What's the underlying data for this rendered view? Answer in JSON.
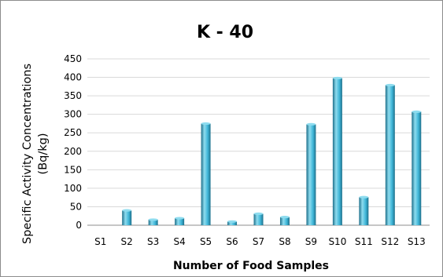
{
  "chart_data": {
    "type": "bar",
    "title": "K - 40",
    "xlabel": "Number of Food Samples",
    "ylabel_lines": [
      "Specific  Activity Concentrations",
      "(Bq/kg)"
    ],
    "categories": [
      "S1",
      "S2",
      "S3",
      "S4",
      "S5",
      "S6",
      "S7",
      "S8",
      "S9",
      "S10",
      "S11",
      "S12",
      "S13"
    ],
    "values": [
      0,
      40,
      15,
      19,
      275,
      10,
      31,
      22,
      273,
      398,
      76,
      379,
      307
    ],
    "ylim": [
      0,
      450
    ],
    "yticks": [
      0,
      50,
      100,
      150,
      200,
      250,
      300,
      350,
      400,
      450
    ],
    "grid": true,
    "legend": "none",
    "colors": {
      "bar_light": "#8edcef",
      "bar_mid": "#3fb6d8",
      "bar_dark": "#1d6f8a"
    }
  }
}
